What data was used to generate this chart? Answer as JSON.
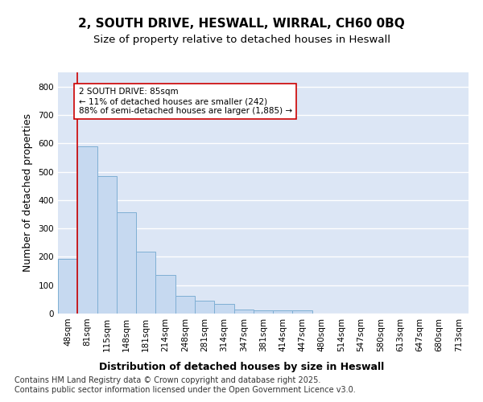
{
  "title1": "2, SOUTH DRIVE, HESWALL, WIRRAL, CH60 0BQ",
  "title2": "Size of property relative to detached houses in Heswall",
  "xlabel": "Distribution of detached houses by size in Heswall",
  "ylabel": "Number of detached properties",
  "categories": [
    "48sqm",
    "81sqm",
    "115sqm",
    "148sqm",
    "181sqm",
    "214sqm",
    "248sqm",
    "281sqm",
    "314sqm",
    "347sqm",
    "381sqm",
    "414sqm",
    "447sqm",
    "480sqm",
    "514sqm",
    "547sqm",
    "580sqm",
    "613sqm",
    "647sqm",
    "680sqm",
    "713sqm"
  ],
  "bar_heights": [
    193,
    590,
    484,
    358,
    218,
    135,
    63,
    46,
    35,
    15,
    10,
    10,
    10,
    0,
    0,
    0,
    0,
    0,
    0,
    0,
    0
  ],
  "bar_color": "#c6d9f0",
  "bar_edge_color": "#7fafd4",
  "annotation_text": "2 SOUTH DRIVE: 85sqm\n← 11% of detached houses are smaller (242)\n88% of semi-detached houses are larger (1,885) →",
  "annotation_box_color": "#ffffff",
  "annotation_box_edge_color": "#cc0000",
  "vline_color": "#cc0000",
  "background_color": "#ffffff",
  "plot_background": "#dce6f5",
  "ylim": [
    0,
    850
  ],
  "yticks": [
    0,
    100,
    200,
    300,
    400,
    500,
    600,
    700,
    800
  ],
  "footer": "Contains HM Land Registry data © Crown copyright and database right 2025.\nContains public sector information licensed under the Open Government Licence v3.0.",
  "title_fontsize": 11,
  "subtitle_fontsize": 9.5,
  "axis_label_fontsize": 9,
  "tick_fontsize": 7.5,
  "footer_fontsize": 7
}
